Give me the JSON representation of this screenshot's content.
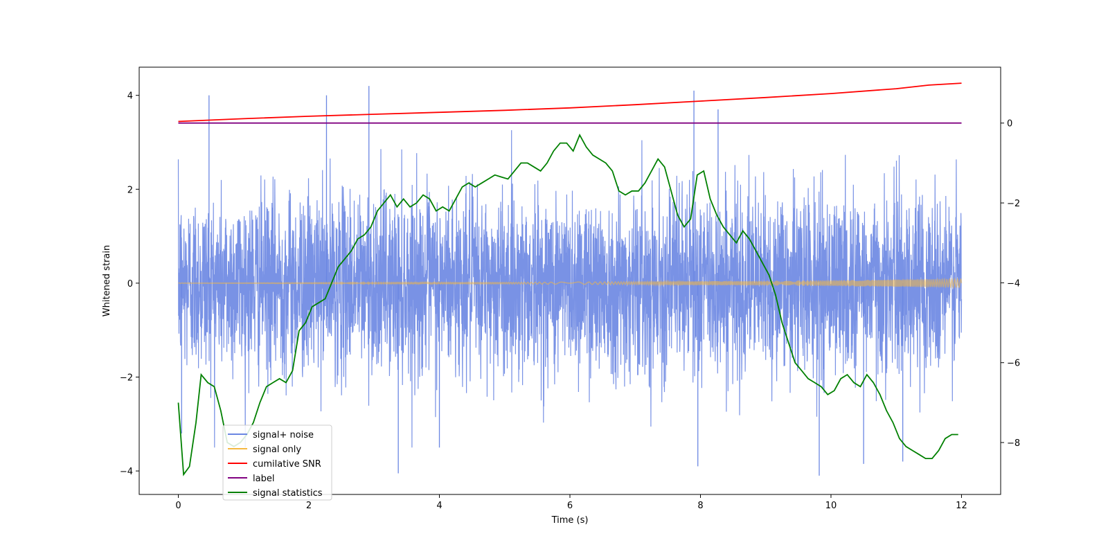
{
  "chart_data": {
    "type": "line",
    "xlabel": "Time (s)",
    "ylabel": "Whitened strain",
    "xlim": [
      -0.6,
      12.6
    ],
    "ylim": [
      -4.5,
      4.6
    ],
    "y2lim": [
      -9.3,
      1.4
    ],
    "x_ticks": [
      0,
      2,
      4,
      6,
      8,
      10,
      12
    ],
    "y_ticks": [
      -4,
      -2,
      0,
      2,
      4
    ],
    "y2_ticks": [
      -8,
      -6,
      -4,
      -2,
      0
    ],
    "legend": [
      "signal+ noise",
      "signal only",
      "cumilative SNR",
      "label",
      "signal statistics"
    ],
    "legend_position": "lower-left",
    "colors": {
      "signal_noise": "#6a86e2",
      "signal_only": "#f5b841",
      "snr": "#ff0000",
      "label": "#800080",
      "stats": "#008000"
    },
    "series": [
      {
        "name": "signal+ noise",
        "axis": "left",
        "description_stats": {
          "mean": 0,
          "std": 1,
          "duration_s": 12,
          "min": -4.1,
          "max": 4.2
        },
        "spikes": [
          [
            0.47,
            4.0
          ],
          [
            2.27,
            4.0
          ],
          [
            2.92,
            4.2
          ],
          [
            7.9,
            4.1
          ],
          [
            8.27,
            3.7
          ],
          [
            3.37,
            -4.05
          ],
          [
            9.82,
            -4.1
          ],
          [
            11.1,
            -3.8
          ],
          [
            7.96,
            -3.9
          ],
          [
            10.5,
            -3.85
          ],
          [
            0.05,
            -3.2
          ],
          [
            4.0,
            -3.5
          ]
        ]
      },
      {
        "name": "signal only",
        "axis": "left",
        "description_stats": {
          "amplitude_start": 0.005,
          "amplitude_end": 0.09
        }
      },
      {
        "name": "cumilative SNR",
        "axis": "right",
        "x": [
          0,
          1,
          2,
          3,
          4,
          5,
          6,
          7,
          8,
          9,
          10,
          11,
          11.5,
          12
        ],
        "y": [
          0.04,
          0.11,
          0.17,
          0.22,
          0.27,
          0.32,
          0.38,
          0.46,
          0.55,
          0.64,
          0.74,
          0.86,
          0.95,
          1.0
        ]
      },
      {
        "name": "label",
        "axis": "right",
        "x": [
          0,
          12
        ],
        "y": [
          0,
          0
        ]
      },
      {
        "name": "signal statistics",
        "axis": "right",
        "x": [
          0,
          0.08,
          0.17,
          0.27,
          0.35,
          0.45,
          0.55,
          0.65,
          0.75,
          0.85,
          0.95,
          1.05,
          1.15,
          1.25,
          1.35,
          1.45,
          1.55,
          1.65,
          1.75,
          1.85,
          1.95,
          2.05,
          2.15,
          2.25,
          2.35,
          2.45,
          2.55,
          2.65,
          2.75,
          2.85,
          2.95,
          3.05,
          3.15,
          3.25,
          3.35,
          3.45,
          3.55,
          3.65,
          3.75,
          3.85,
          3.95,
          4.05,
          4.15,
          4.25,
          4.35,
          4.45,
          4.55,
          4.65,
          4.75,
          4.85,
          4.95,
          5.05,
          5.15,
          5.25,
          5.35,
          5.45,
          5.55,
          5.65,
          5.75,
          5.85,
          5.95,
          6.05,
          6.15,
          6.25,
          6.35,
          6.45,
          6.55,
          6.65,
          6.75,
          6.85,
          6.95,
          7.05,
          7.15,
          7.25,
          7.35,
          7.45,
          7.55,
          7.65,
          7.75,
          7.85,
          7.95,
          8.05,
          8.15,
          8.25,
          8.35,
          8.45,
          8.55,
          8.65,
          8.75,
          8.85,
          8.95,
          9.05,
          9.15,
          9.25,
          9.35,
          9.45,
          9.55,
          9.65,
          9.75,
          9.85,
          9.95,
          10.05,
          10.15,
          10.25,
          10.35,
          10.45,
          10.55,
          10.65,
          10.75,
          10.85,
          10.95,
          11.05,
          11.15,
          11.25,
          11.35,
          11.45,
          11.55,
          11.65,
          11.75,
          11.85,
          11.95
        ],
        "y": [
          -7.0,
          -8.8,
          -8.6,
          -7.5,
          -6.3,
          -6.5,
          -6.6,
          -7.2,
          -8.0,
          -8.1,
          -8.0,
          -7.8,
          -7.5,
          -7.0,
          -6.6,
          -6.5,
          -6.4,
          -6.5,
          -6.2,
          -5.2,
          -5.0,
          -4.6,
          -4.5,
          -4.4,
          -4.0,
          -3.6,
          -3.4,
          -3.2,
          -2.9,
          -2.8,
          -2.6,
          -2.2,
          -2.0,
          -1.8,
          -2.1,
          -1.9,
          -2.1,
          -2.0,
          -1.8,
          -1.9,
          -2.2,
          -2.1,
          -2.2,
          -1.9,
          -1.6,
          -1.5,
          -1.6,
          -1.5,
          -1.4,
          -1.3,
          -1.35,
          -1.4,
          -1.2,
          -1.0,
          -1.0,
          -1.1,
          -1.2,
          -1.0,
          -0.7,
          -0.5,
          -0.5,
          -0.7,
          -0.3,
          -0.6,
          -0.8,
          -0.9,
          -1.0,
          -1.2,
          -1.7,
          -1.8,
          -1.7,
          -1.7,
          -1.5,
          -1.2,
          -0.9,
          -1.1,
          -1.7,
          -2.3,
          -2.6,
          -2.4,
          -1.3,
          -1.2,
          -1.9,
          -2.3,
          -2.6,
          -2.8,
          -3.0,
          -2.7,
          -2.9,
          -3.2,
          -3.5,
          -3.8,
          -4.3,
          -5.0,
          -5.5,
          -6.0,
          -6.2,
          -6.4,
          -6.5,
          -6.6,
          -6.8,
          -6.7,
          -6.4,
          -6.3,
          -6.5,
          -6.6,
          -6.3,
          -6.5,
          -6.8,
          -7.2,
          -7.5,
          -7.9,
          -8.1,
          -8.2,
          -8.3,
          -8.4,
          -8.4,
          -8.2,
          -7.9,
          -7.8,
          -7.8
        ]
      }
    ]
  }
}
